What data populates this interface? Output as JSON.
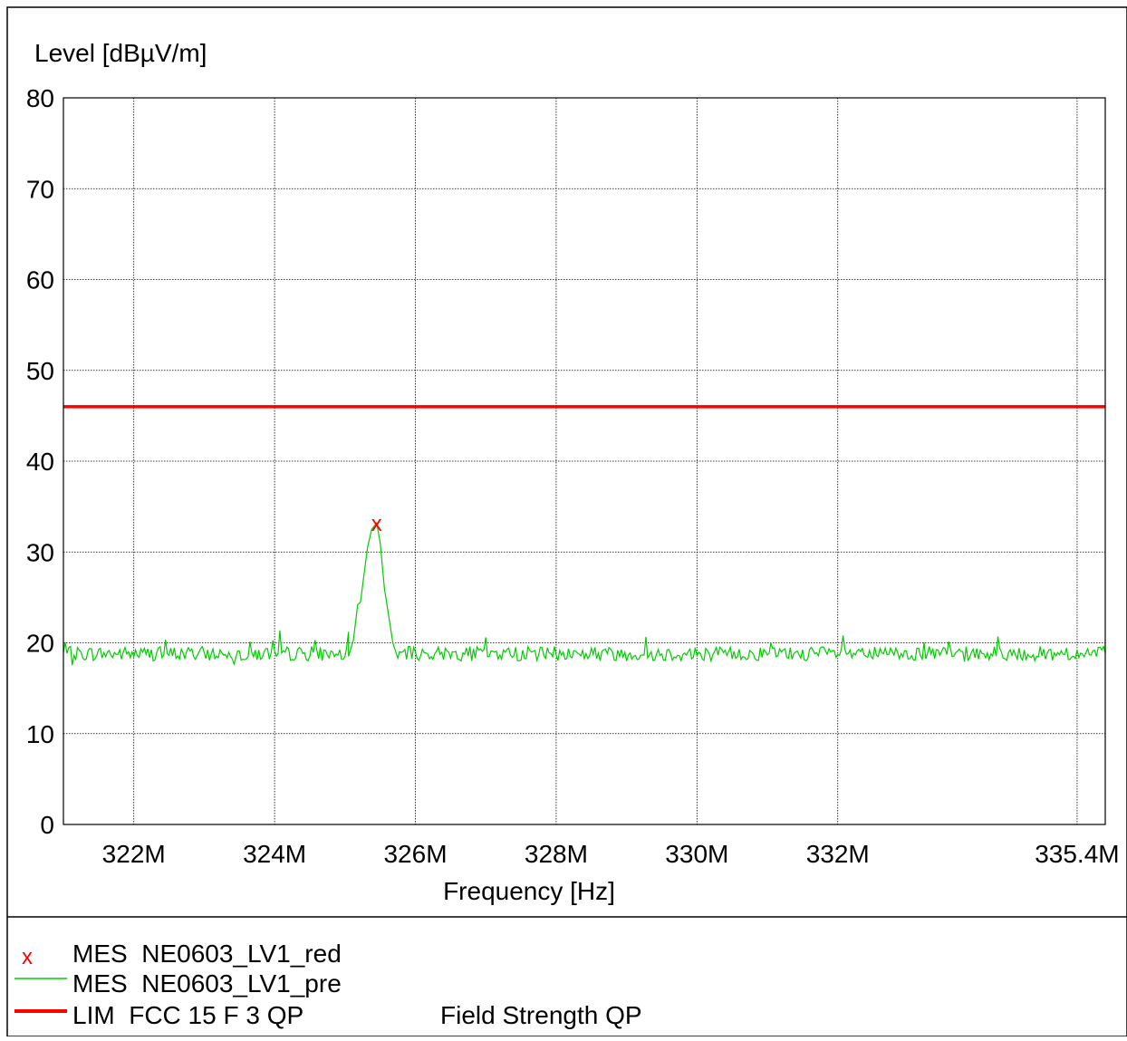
{
  "chart_data": {
    "type": "line",
    "ylabel": "Level [dBµV/m]",
    "xlabel": "Frequency [Hz]",
    "ylim": [
      0,
      80
    ],
    "xlim": [
      321.0,
      335.8
    ],
    "yticks": [
      0,
      10,
      20,
      30,
      40,
      50,
      60,
      70,
      80
    ],
    "xticks": [
      {
        "value": 322,
        "label": "322M"
      },
      {
        "value": 324,
        "label": "324M"
      },
      {
        "value": 326,
        "label": "326M"
      },
      {
        "value": 328,
        "label": "328M"
      },
      {
        "value": 330,
        "label": "330M"
      },
      {
        "value": 332,
        "label": "332M"
      },
      {
        "value": 335.4,
        "label": "335.4M"
      }
    ],
    "grid": true,
    "limit_line": {
      "value": 46,
      "color": "#ff0000"
    },
    "marker": {
      "x": 325.45,
      "y": 33.2,
      "symbol": "x",
      "color": "#ff0000"
    },
    "trace": {
      "color": "#00cc00",
      "noise_floor": 18.8,
      "peak_points": [
        [
          325.05,
          18.5
        ],
        [
          325.12,
          20.3
        ],
        [
          325.18,
          24.2
        ],
        [
          325.22,
          24.5
        ],
        [
          325.27,
          27.5
        ],
        [
          325.32,
          30.5
        ],
        [
          325.38,
          32.5
        ],
        [
          325.45,
          33.2
        ],
        [
          325.5,
          31.0
        ],
        [
          325.56,
          26.0
        ],
        [
          325.62,
          23.0
        ],
        [
          325.68,
          20.0
        ],
        [
          325.75,
          18.3
        ]
      ]
    },
    "legend": [
      {
        "symbol": "x",
        "color": "#ff0000",
        "label": "MES  NE0603_LV1_red",
        "extra": ""
      },
      {
        "symbol": "line",
        "color": "#00cc00",
        "label": "MES  NE0603_LV1_pre",
        "extra": ""
      },
      {
        "symbol": "thickline",
        "color": "#ff0000",
        "label": "LIM  FCC 15 F 3 QP",
        "extra": "Field Strength QP"
      }
    ]
  }
}
